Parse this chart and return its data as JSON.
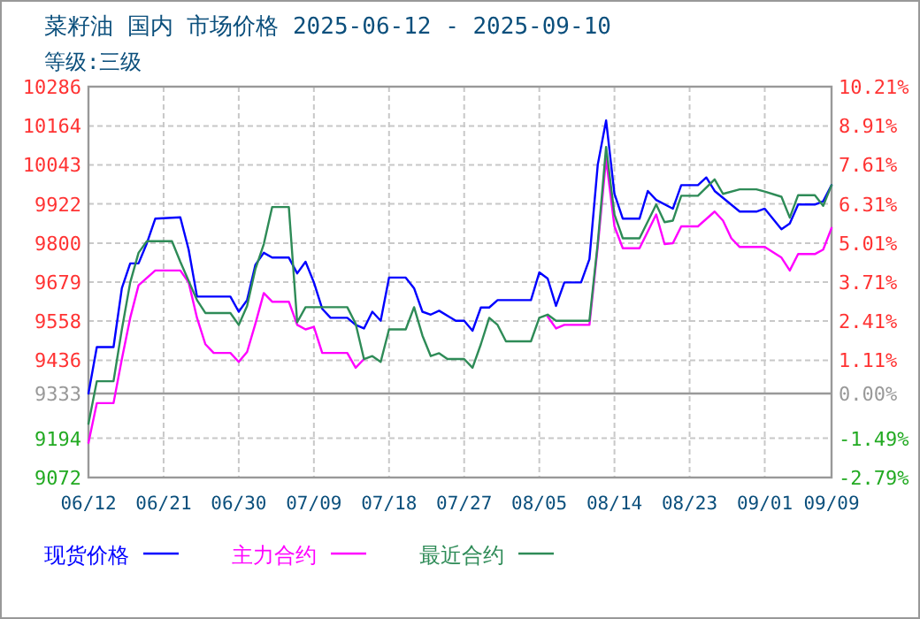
{
  "chart_data": {
    "type": "line",
    "title": "菜籽油 国内 市场价格 2025-06-12 - 2025-09-10",
    "subtitle": "等级:三级",
    "xlim": [
      "2025-06-12",
      "2025-09-09"
    ],
    "xticks": [
      {
        "value": "2025-06-12",
        "label": "06/12"
      },
      {
        "value": "2025-06-21",
        "label": "06/21"
      },
      {
        "value": "2025-06-30",
        "label": "06/30"
      },
      {
        "value": "2025-07-09",
        "label": "07/09"
      },
      {
        "value": "2025-07-18",
        "label": "07/18"
      },
      {
        "value": "2025-07-27",
        "label": "07/27"
      },
      {
        "value": "2025-08-05",
        "label": "08/05"
      },
      {
        "value": "2025-08-14",
        "label": "08/14"
      },
      {
        "value": "2025-08-23",
        "label": "08/23"
      },
      {
        "value": "2025-09-01",
        "label": "09/01"
      },
      {
        "value": "2025-09-09",
        "label": "09/09"
      }
    ],
    "ylim": [
      9072,
      10286
    ],
    "yticks": [
      9072,
      9194,
      9333,
      9436,
      9558,
      9679,
      9800,
      9922,
      10043,
      10164,
      10286
    ],
    "y2lim": [
      -2.79,
      10.21
    ],
    "y2ticks": [
      {
        "value": -2.79,
        "label": "-2.79%"
      },
      {
        "value": -1.49,
        "label": "-1.49%"
      },
      {
        "value": 0,
        "label": "0.00%"
      },
      {
        "value": 1.11,
        "label": "1.11%"
      },
      {
        "value": 2.41,
        "label": "2.41%"
      },
      {
        "value": 3.71,
        "label": "3.71%"
      },
      {
        "value": 5.01,
        "label": "5.01%"
      },
      {
        "value": 6.31,
        "label": "6.31%"
      },
      {
        "value": 7.61,
        "label": "7.61%"
      },
      {
        "value": 8.91,
        "label": "8.91%"
      },
      {
        "value": 10.21,
        "label": "10.21%"
      }
    ],
    "ref_lines": [
      {
        "axis": "y",
        "value": 9333,
        "color": "#999999",
        "line_style": "solid"
      }
    ],
    "grid": true,
    "legend": "bottom",
    "marker": "none",
    "line_style": "solid",
    "series": [
      {
        "name": "现货价格",
        "color": "#0000ff",
        "x": [
          "2025-06-12",
          "2025-06-13",
          "2025-06-15",
          "2025-06-16",
          "2025-06-17",
          "2025-06-18",
          "2025-06-19",
          "2025-06-20",
          "2025-06-23",
          "2025-06-24",
          "2025-06-25",
          "2025-06-29",
          "2025-06-30",
          "2025-07-01",
          "2025-07-02",
          "2025-07-03",
          "2025-07-04",
          "2025-07-06",
          "2025-07-07",
          "2025-07-08",
          "2025-07-09",
          "2025-07-10",
          "2025-07-11",
          "2025-07-13",
          "2025-07-14",
          "2025-07-15",
          "2025-07-16",
          "2025-07-17",
          "2025-07-18",
          "2025-07-20",
          "2025-07-21",
          "2025-07-22",
          "2025-07-23",
          "2025-07-24",
          "2025-07-26",
          "2025-07-27",
          "2025-07-28",
          "2025-07-29",
          "2025-07-30",
          "2025-07-31",
          "2025-08-04",
          "2025-08-05",
          "2025-08-06",
          "2025-08-07",
          "2025-08-08",
          "2025-08-10",
          "2025-08-11",
          "2025-08-12",
          "2025-08-13",
          "2025-08-14",
          "2025-08-15",
          "2025-08-17",
          "2025-08-18",
          "2025-08-19",
          "2025-08-21",
          "2025-08-22",
          "2025-08-24",
          "2025-08-25",
          "2025-08-26",
          "2025-08-29",
          "2025-08-31",
          "2025-09-01",
          "2025-09-03",
          "2025-09-04",
          "2025-09-05",
          "2025-09-07",
          "2025-09-08",
          "2025-09-09"
        ],
        "values": [
          9333,
          9477,
          9477,
          9660,
          9737,
          9737,
          9800,
          9876,
          9880,
          9780,
          9634,
          9634,
          9587,
          9623,
          9733,
          9770,
          9755,
          9755,
          9706,
          9742,
          9678,
          9596,
          9568,
          9568,
          9546,
          9535,
          9587,
          9559,
          9693,
          9693,
          9660,
          9587,
          9578,
          9590,
          9559,
          9559,
          9528,
          9600,
          9600,
          9623,
          9623,
          9709,
          9690,
          9605,
          9678,
          9678,
          9750,
          10044,
          10181,
          9953,
          9876,
          9876,
          9962,
          9934,
          9907,
          9980,
          9980,
          10004,
          9962,
          9898,
          9898,
          9907,
          9843,
          9861,
          9920,
          9920,
          9930,
          9980
        ]
      },
      {
        "name": "主力合约",
        "color": "#ff00ff",
        "x": [
          "2025-06-12",
          "2025-06-13",
          "2025-06-15",
          "2025-06-16",
          "2025-06-17",
          "2025-06-18",
          "2025-06-20",
          "2025-06-23",
          "2025-06-24",
          "2025-06-25",
          "2025-06-26",
          "2025-06-27",
          "2025-06-29",
          "2025-06-30",
          "2025-07-01",
          "2025-07-02",
          "2025-07-03",
          "2025-07-04",
          "2025-07-06",
          "2025-07-07",
          "2025-07-08",
          "2025-07-09",
          "2025-07-10",
          "2025-07-13",
          "2025-07-14",
          "2025-07-15",
          "2025-07-26",
          "2025-08-06",
          "2025-08-07",
          "2025-08-08",
          "2025-08-11",
          "2025-08-12",
          "2025-08-13",
          "2025-08-14",
          "2025-08-15",
          "2025-08-17",
          "2025-08-19",
          "2025-08-20",
          "2025-08-21",
          "2025-08-22",
          "2025-08-24",
          "2025-08-26",
          "2025-08-27",
          "2025-08-28",
          "2025-08-29",
          "2025-09-01",
          "2025-09-03",
          "2025-09-04",
          "2025-09-05",
          "2025-09-07",
          "2025-09-08",
          "2025-09-09"
        ],
        "values": [
          9180,
          9303,
          9303,
          9440,
          9568,
          9669,
          9715,
          9715,
          9678,
          9568,
          9486,
          9459,
          9459,
          9431,
          9462,
          9550,
          9645,
          9618,
          9618,
          9546,
          9532,
          9540,
          9459,
          9459,
          9413,
          9440,
          null,
          9572,
          9535,
          9546,
          9546,
          9790,
          10062,
          9852,
          9784,
          9784,
          9889,
          9797,
          9800,
          9852,
          9852,
          9898,
          9870,
          9815,
          9788,
          9788,
          9755,
          9715,
          9766,
          9766,
          9780,
          9847
        ]
      },
      {
        "name": "最近合约",
        "color": "#2e8b57",
        "x": [
          "2025-06-12",
          "2025-06-13",
          "2025-06-15",
          "2025-06-16",
          "2025-06-17",
          "2025-06-18",
          "2025-06-19",
          "2025-06-22",
          "2025-06-23",
          "2025-06-25",
          "2025-06-26",
          "2025-06-29",
          "2025-06-30",
          "2025-07-01",
          "2025-07-02",
          "2025-07-03",
          "2025-07-04",
          "2025-07-06",
          "2025-07-07",
          "2025-07-08",
          "2025-07-13",
          "2025-07-14",
          "2025-07-15",
          "2025-07-16",
          "2025-07-17",
          "2025-07-18",
          "2025-07-20",
          "2025-07-21",
          "2025-07-22",
          "2025-07-23",
          "2025-07-24",
          "2025-07-25",
          "2025-07-27",
          "2025-07-28",
          "2025-07-29",
          "2025-07-30",
          "2025-07-31",
          "2025-08-01",
          "2025-08-04",
          "2025-08-05",
          "2025-08-06",
          "2025-08-07",
          "2025-08-11",
          "2025-08-12",
          "2025-08-13",
          "2025-08-14",
          "2025-08-15",
          "2025-08-17",
          "2025-08-19",
          "2025-08-20",
          "2025-08-21",
          "2025-08-22",
          "2025-08-24",
          "2025-08-26",
          "2025-08-27",
          "2025-08-29",
          "2025-08-31",
          "2025-09-01",
          "2025-09-03",
          "2025-09-04",
          "2025-09-05",
          "2025-09-07",
          "2025-09-08",
          "2025-09-09"
        ],
        "values": [
          9239,
          9371,
          9371,
          9532,
          9678,
          9770,
          9806,
          9806,
          9742,
          9623,
          9583,
          9583,
          9546,
          9605,
          9720,
          9797,
          9912,
          9912,
          9554,
          9601,
          9601,
          9550,
          9440,
          9449,
          9431,
          9532,
          9532,
          9601,
          9513,
          9449,
          9458,
          9440,
          9440,
          9413,
          9486,
          9568,
          9546,
          9495,
          9495,
          9568,
          9578,
          9559,
          9559,
          9800,
          10099,
          9889,
          9815,
          9815,
          9920,
          9865,
          9870,
          9947,
          9947,
          9998,
          9953,
          9967,
          9967,
          9960,
          9944,
          9879,
          9949,
          9949,
          9916,
          9980
        ]
      }
    ]
  }
}
